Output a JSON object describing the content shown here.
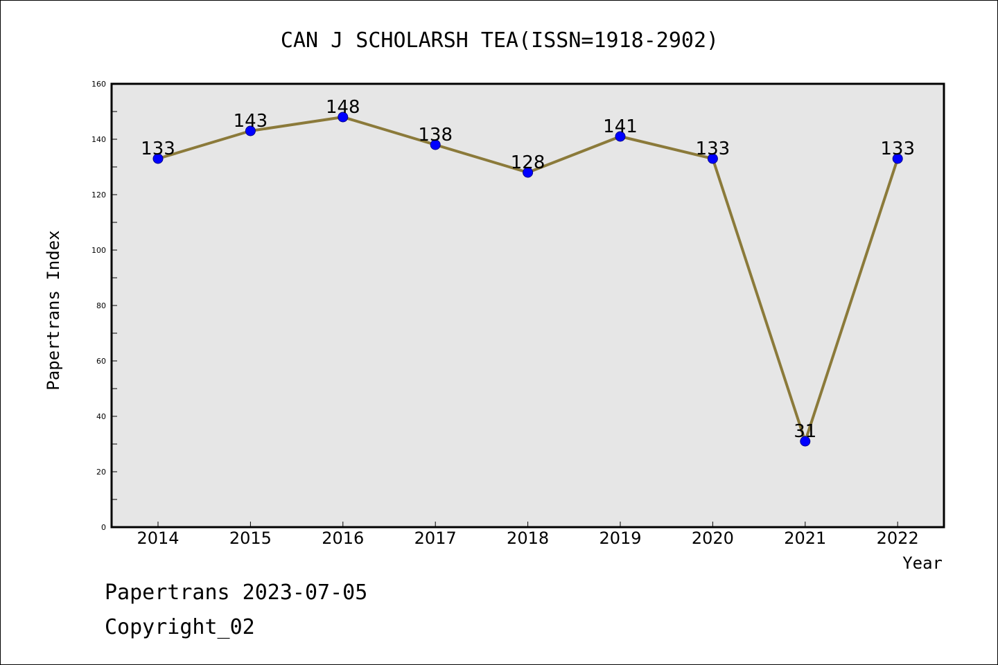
{
  "chart_data": {
    "type": "line",
    "title": "CAN J SCHOLARSH TEA(ISSN=1918-2902)",
    "xlabel": "Year",
    "ylabel": "Papertrans Index",
    "categories": [
      "2014",
      "2015",
      "2016",
      "2017",
      "2018",
      "2019",
      "2020",
      "2021",
      "2022"
    ],
    "series": [
      {
        "values": [
          133,
          143,
          148,
          138,
          128,
          141,
          133,
          31,
          133
        ]
      }
    ],
    "ylim": [
      0,
      160
    ],
    "yticks": [
      0,
      20,
      40,
      60,
      80,
      100,
      120,
      140,
      160
    ],
    "grid": false,
    "data_labels": true,
    "colors": {
      "plot_background": "#e6e6e6",
      "line": "#8b7a3a",
      "marker_fill": "#0000ff",
      "marker_stroke": "#00008b"
    }
  },
  "footer": {
    "line1": "Papertrans 2023-07-05",
    "line2": "Copyright_02"
  }
}
